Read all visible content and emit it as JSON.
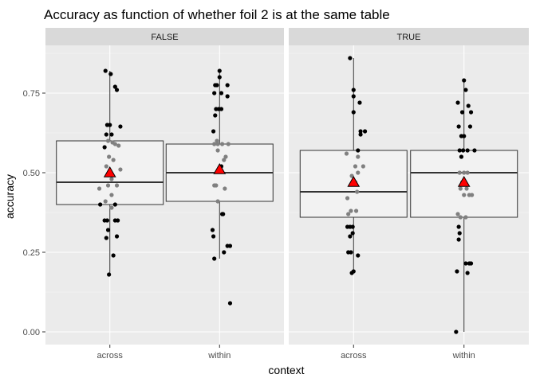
{
  "chart_data": {
    "type": "boxplot",
    "title": "Accuracy as function of whether foil 2 is at the same table",
    "xlabel": "context",
    "ylabel": "accuracy",
    "ylim": [
      -0.04,
      0.9
    ],
    "yticks": [
      0.0,
      0.25,
      0.5,
      0.75
    ],
    "ytick_labels": [
      "0.00",
      "0.25",
      "0.50",
      "0.75"
    ],
    "categories": [
      "across",
      "within"
    ],
    "grid": true,
    "colors": {
      "panel_bg": "#ebebeb",
      "strip_bg": "#d9d9d9",
      "grid_major": "#ffffff",
      "box_fill": "#f2f2f2",
      "box_stroke": "#333333",
      "point_dark": "#000000",
      "point_light": "#808080",
      "mean_marker": "#ff0000"
    },
    "facets": [
      {
        "label": "FALSE",
        "groups": [
          {
            "category": "across",
            "box": {
              "whisker_low": 0.18,
              "q1": 0.4,
              "median": 0.47,
              "q3": 0.6,
              "whisker_high": 0.82
            },
            "mean": 0.5,
            "points": [
              {
                "j": -0.05,
                "y": 0.82,
                "t": "d"
              },
              {
                "j": 0.01,
                "y": 0.81,
                "t": "d"
              },
              {
                "j": 0.06,
                "y": 0.77,
                "t": "d"
              },
              {
                "j": 0.08,
                "y": 0.76,
                "t": "d"
              },
              {
                "j": -0.03,
                "y": 0.65,
                "t": "d"
              },
              {
                "j": 0.0,
                "y": 0.65,
                "t": "d"
              },
              {
                "j": 0.12,
                "y": 0.645,
                "t": "d"
              },
              {
                "j": -0.04,
                "y": 0.62,
                "t": "d"
              },
              {
                "j": 0.02,
                "y": 0.62,
                "t": "d"
              },
              {
                "j": -0.02,
                "y": 0.6,
                "t": "l"
              },
              {
                "j": 0.03,
                "y": 0.595,
                "t": "l"
              },
              {
                "j": -0.06,
                "y": 0.58,
                "t": "d"
              },
              {
                "j": 0.06,
                "y": 0.59,
                "t": "l"
              },
              {
                "j": 0.1,
                "y": 0.585,
                "t": "l"
              },
              {
                "j": -0.01,
                "y": 0.55,
                "t": "l"
              },
              {
                "j": 0.04,
                "y": 0.54,
                "t": "l"
              },
              {
                "j": -0.04,
                "y": 0.52,
                "t": "l"
              },
              {
                "j": 0.12,
                "y": 0.51,
                "t": "l"
              },
              {
                "j": 0.02,
                "y": 0.48,
                "t": "l"
              },
              {
                "j": -0.02,
                "y": 0.46,
                "t": "l"
              },
              {
                "j": 0.08,
                "y": 0.46,
                "t": "l"
              },
              {
                "j": -0.12,
                "y": 0.45,
                "t": "l"
              },
              {
                "j": 0.02,
                "y": 0.43,
                "t": "l"
              },
              {
                "j": -0.05,
                "y": 0.41,
                "t": "l"
              },
              {
                "j": 0.06,
                "y": 0.4,
                "t": "d"
              },
              {
                "j": -0.11,
                "y": 0.4,
                "t": "d"
              },
              {
                "j": 0.02,
                "y": 0.39,
                "t": "l"
              },
              {
                "j": -0.06,
                "y": 0.35,
                "t": "d"
              },
              {
                "j": -0.03,
                "y": 0.35,
                "t": "d"
              },
              {
                "j": 0.06,
                "y": 0.35,
                "t": "d"
              },
              {
                "j": 0.09,
                "y": 0.35,
                "t": "d"
              },
              {
                "j": -0.02,
                "y": 0.32,
                "t": "d"
              },
              {
                "j": 0.08,
                "y": 0.3,
                "t": "d"
              },
              {
                "j": -0.04,
                "y": 0.295,
                "t": "d"
              },
              {
                "j": 0.04,
                "y": 0.24,
                "t": "d"
              },
              {
                "j": -0.01,
                "y": 0.18,
                "t": "d"
              }
            ]
          },
          {
            "category": "within",
            "box": {
              "whisker_low": 0.23,
              "q1": 0.41,
              "median": 0.5,
              "q3": 0.59,
              "whisker_high": 0.82
            },
            "mean": 0.51,
            "points": [
              {
                "j": 0.0,
                "y": 0.82,
                "t": "d"
              },
              {
                "j": 0.0,
                "y": 0.8,
                "t": "d"
              },
              {
                "j": -0.05,
                "y": 0.775,
                "t": "d"
              },
              {
                "j": -0.03,
                "y": 0.775,
                "t": "d"
              },
              {
                "j": 0.09,
                "y": 0.775,
                "t": "d"
              },
              {
                "j": -0.06,
                "y": 0.75,
                "t": "d"
              },
              {
                "j": 0.02,
                "y": 0.75,
                "t": "d"
              },
              {
                "j": 0.09,
                "y": 0.74,
                "t": "d"
              },
              {
                "j": -0.04,
                "y": 0.7,
                "t": "d"
              },
              {
                "j": -0.01,
                "y": 0.7,
                "t": "d"
              },
              {
                "j": 0.02,
                "y": 0.7,
                "t": "d"
              },
              {
                "j": -0.05,
                "y": 0.68,
                "t": "d"
              },
              {
                "j": -0.07,
                "y": 0.63,
                "t": "d"
              },
              {
                "j": -0.03,
                "y": 0.6,
                "t": "l"
              },
              {
                "j": -0.06,
                "y": 0.59,
                "t": "l"
              },
              {
                "j": -0.02,
                "y": 0.59,
                "t": "l"
              },
              {
                "j": 0.03,
                "y": 0.59,
                "t": "l"
              },
              {
                "j": 0.1,
                "y": 0.59,
                "t": "l"
              },
              {
                "j": -0.02,
                "y": 0.57,
                "t": "l"
              },
              {
                "j": 0.07,
                "y": 0.55,
                "t": "l"
              },
              {
                "j": 0.02,
                "y": 0.52,
                "t": "d"
              },
              {
                "j": 0.05,
                "y": 0.54,
                "t": "l"
              },
              {
                "j": -0.06,
                "y": 0.46,
                "t": "l"
              },
              {
                "j": -0.04,
                "y": 0.46,
                "t": "l"
              },
              {
                "j": 0.06,
                "y": 0.45,
                "t": "l"
              },
              {
                "j": -0.02,
                "y": 0.41,
                "t": "l"
              },
              {
                "j": 0.03,
                "y": 0.37,
                "t": "d"
              },
              {
                "j": 0.04,
                "y": 0.37,
                "t": "d"
              },
              {
                "j": -0.08,
                "y": 0.32,
                "t": "d"
              },
              {
                "j": -0.07,
                "y": 0.3,
                "t": "d"
              },
              {
                "j": 0.12,
                "y": 0.27,
                "t": "d"
              },
              {
                "j": 0.09,
                "y": 0.27,
                "t": "d"
              },
              {
                "j": 0.05,
                "y": 0.25,
                "t": "d"
              },
              {
                "j": -0.06,
                "y": 0.23,
                "t": "d"
              },
              {
                "j": 0.12,
                "y": 0.09,
                "t": "d"
              }
            ]
          }
        ]
      },
      {
        "label": "TRUE",
        "groups": [
          {
            "category": "across",
            "box": {
              "whisker_low": 0.19,
              "q1": 0.36,
              "median": 0.44,
              "q3": 0.57,
              "whisker_high": 0.86
            },
            "mean": 0.47,
            "points": [
              {
                "j": -0.04,
                "y": 0.86,
                "t": "d"
              },
              {
                "j": 0.0,
                "y": 0.76,
                "t": "d"
              },
              {
                "j": 0.0,
                "y": 0.74,
                "t": "d"
              },
              {
                "j": 0.07,
                "y": 0.72,
                "t": "d"
              },
              {
                "j": 0.0,
                "y": 0.69,
                "t": "d"
              },
              {
                "j": 0.08,
                "y": 0.63,
                "t": "d"
              },
              {
                "j": 0.13,
                "y": 0.63,
                "t": "d"
              },
              {
                "j": 0.08,
                "y": 0.62,
                "t": "d"
              },
              {
                "j": 0.05,
                "y": 0.57,
                "t": "d"
              },
              {
                "j": -0.08,
                "y": 0.56,
                "t": "l"
              },
              {
                "j": 0.05,
                "y": 0.55,
                "t": "l"
              },
              {
                "j": 0.11,
                "y": 0.52,
                "t": "l"
              },
              {
                "j": 0.02,
                "y": 0.52,
                "t": "l"
              },
              {
                "j": 0.05,
                "y": 0.5,
                "t": "l"
              },
              {
                "j": -0.02,
                "y": 0.49,
                "t": "l"
              },
              {
                "j": 0.02,
                "y": 0.47,
                "t": "l"
              },
              {
                "j": 0.04,
                "y": 0.44,
                "t": "l"
              },
              {
                "j": -0.07,
                "y": 0.42,
                "t": "l"
              },
              {
                "j": -0.03,
                "y": 0.38,
                "t": "l"
              },
              {
                "j": -0.06,
                "y": 0.37,
                "t": "l"
              },
              {
                "j": 0.03,
                "y": 0.38,
                "t": "l"
              },
              {
                "j": -0.07,
                "y": 0.33,
                "t": "d"
              },
              {
                "j": -0.04,
                "y": 0.33,
                "t": "d"
              },
              {
                "j": -0.01,
                "y": 0.33,
                "t": "d"
              },
              {
                "j": -0.04,
                "y": 0.3,
                "t": "d"
              },
              {
                "j": -0.01,
                "y": 0.31,
                "t": "d"
              },
              {
                "j": -0.06,
                "y": 0.25,
                "t": "d"
              },
              {
                "j": -0.03,
                "y": 0.25,
                "t": "d"
              },
              {
                "j": 0.05,
                "y": 0.24,
                "t": "d"
              },
              {
                "j": 0.0,
                "y": 0.19,
                "t": "d"
              },
              {
                "j": -0.02,
                "y": 0.185,
                "t": "d"
              }
            ]
          },
          {
            "category": "within",
            "box": {
              "whisker_low": 0.0,
              "q1": 0.36,
              "median": 0.5,
              "q3": 0.57,
              "whisker_high": 0.79
            },
            "mean": 0.47,
            "points": [
              {
                "j": 0.0,
                "y": 0.79,
                "t": "d"
              },
              {
                "j": 0.02,
                "y": 0.76,
                "t": "d"
              },
              {
                "j": -0.07,
                "y": 0.72,
                "t": "d"
              },
              {
                "j": 0.05,
                "y": 0.71,
                "t": "d"
              },
              {
                "j": 0.08,
                "y": 0.69,
                "t": "d"
              },
              {
                "j": -0.02,
                "y": 0.69,
                "t": "d"
              },
              {
                "j": -0.06,
                "y": 0.645,
                "t": "d"
              },
              {
                "j": 0.07,
                "y": 0.645,
                "t": "d"
              },
              {
                "j": -0.03,
                "y": 0.615,
                "t": "d"
              },
              {
                "j": 0.0,
                "y": 0.615,
                "t": "d"
              },
              {
                "j": -0.05,
                "y": 0.57,
                "t": "d"
              },
              {
                "j": -0.01,
                "y": 0.57,
                "t": "d"
              },
              {
                "j": 0.04,
                "y": 0.57,
                "t": "d"
              },
              {
                "j": 0.12,
                "y": 0.57,
                "t": "d"
              },
              {
                "j": -0.03,
                "y": 0.55,
                "t": "d"
              },
              {
                "j": -0.05,
                "y": 0.5,
                "t": "l"
              },
              {
                "j": 0.0,
                "y": 0.5,
                "t": "l"
              },
              {
                "j": 0.04,
                "y": 0.5,
                "t": "l"
              },
              {
                "j": -0.02,
                "y": 0.47,
                "t": "l"
              },
              {
                "j": 0.03,
                "y": 0.45,
                "t": "l"
              },
              {
                "j": -0.04,
                "y": 0.45,
                "t": "l"
              },
              {
                "j": 0.06,
                "y": 0.43,
                "t": "l"
              },
              {
                "j": 0.0,
                "y": 0.43,
                "t": "l"
              },
              {
                "j": 0.09,
                "y": 0.43,
                "t": "l"
              },
              {
                "j": -0.07,
                "y": 0.37,
                "t": "l"
              },
              {
                "j": -0.04,
                "y": 0.36,
                "t": "l"
              },
              {
                "j": 0.02,
                "y": 0.36,
                "t": "l"
              },
              {
                "j": -0.06,
                "y": 0.33,
                "t": "d"
              },
              {
                "j": -0.05,
                "y": 0.31,
                "t": "d"
              },
              {
                "j": -0.06,
                "y": 0.29,
                "t": "d"
              },
              {
                "j": 0.02,
                "y": 0.215,
                "t": "d"
              },
              {
                "j": 0.06,
                "y": 0.215,
                "t": "d"
              },
              {
                "j": 0.08,
                "y": 0.215,
                "t": "d"
              },
              {
                "j": -0.08,
                "y": 0.19,
                "t": "d"
              },
              {
                "j": 0.04,
                "y": 0.185,
                "t": "d"
              },
              {
                "j": -0.09,
                "y": 0.0,
                "t": "d"
              }
            ]
          }
        ]
      }
    ]
  }
}
